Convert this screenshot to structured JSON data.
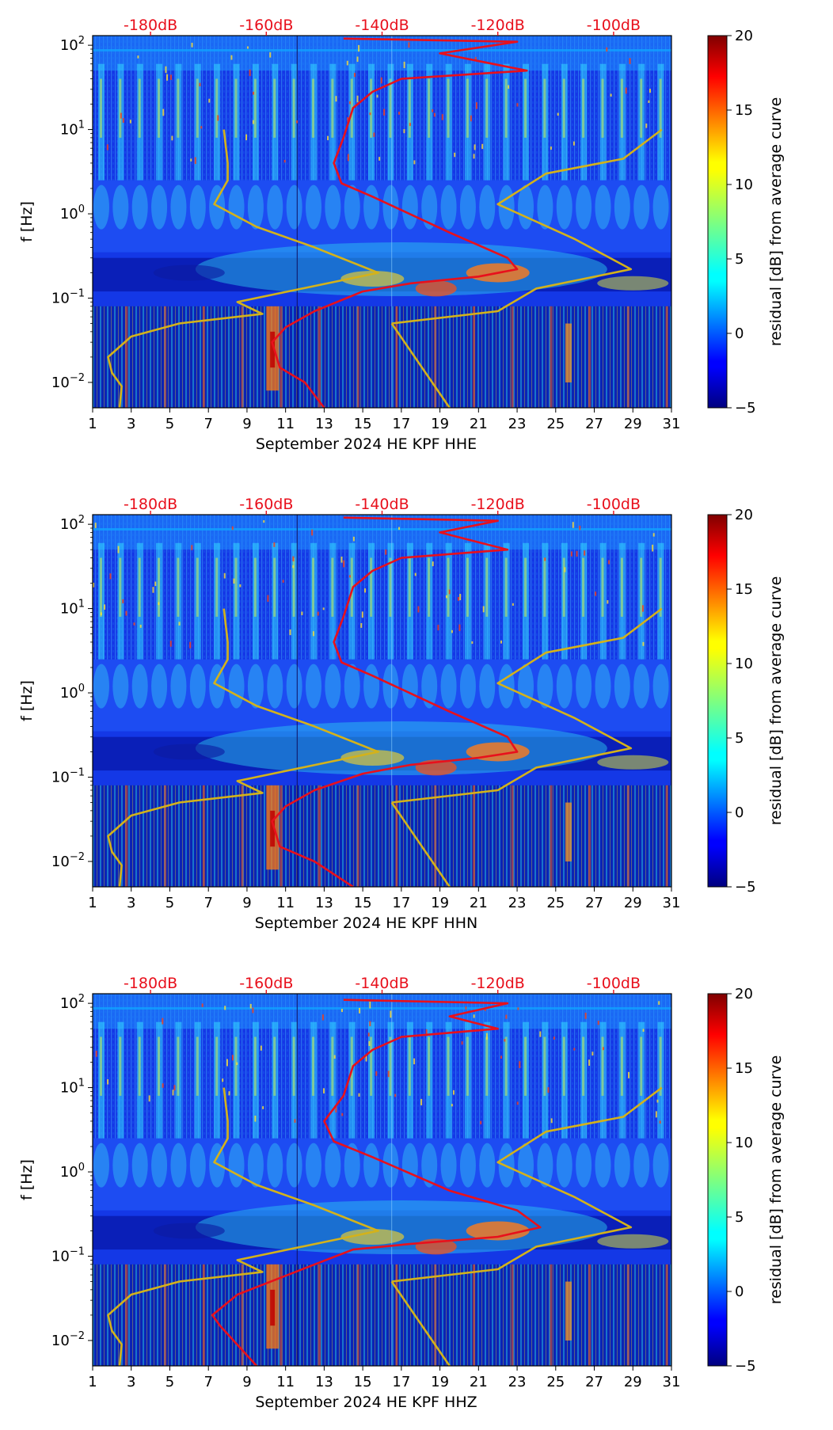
{
  "chart_data": [
    {
      "type": "heatmap",
      "xlabel": "September 2024 HE KPF  HHE",
      "ylabel": "f [Hz]",
      "colorbar_label": "residual [dB] from average curve",
      "colorbar_ticks": [
        "20",
        "15",
        "10",
        "5",
        "0",
        "−5"
      ],
      "clim": [
        -5,
        20
      ],
      "x_ticks": [
        "1",
        "3",
        "5",
        "7",
        "9",
        "11",
        "13",
        "15",
        "17",
        "19",
        "21",
        "23",
        "25",
        "27",
        "29",
        "31"
      ],
      "xlim": [
        1,
        31
      ],
      "y_scale": "log",
      "ylim": [
        0.005,
        130
      ],
      "y_ticks": [
        {
          "v": 100,
          "base": "10",
          "exp": "2"
        },
        {
          "v": 10,
          "base": "10",
          "exp": "1"
        },
        {
          "v": 1,
          "base": "10",
          "exp": "0"
        },
        {
          "v": 0.1,
          "base": "10",
          "exp": "−1"
        },
        {
          "v": 0.01,
          "base": "10",
          "exp": "−2"
        }
      ],
      "db_ticks": [
        {
          "label": "-180dB",
          "x": 4
        },
        {
          "label": "-160dB",
          "x": 10
        },
        {
          "label": "-140dB",
          "x": 16
        },
        {
          "label": "-120dB",
          "x": 22
        },
        {
          "label": "-100dB",
          "x": 28
        }
      ],
      "series": [
        {
          "color": "#d4b21a",
          "points": [
            [
              7.8,
              10
            ],
            [
              8.0,
              4
            ],
            [
              8.0,
              2.5
            ],
            [
              7.3,
              1.3
            ],
            [
              9.5,
              0.7
            ],
            [
              12.5,
              0.4
            ],
            [
              15.8,
              0.2
            ],
            [
              8.5,
              0.09
            ],
            [
              9.8,
              0.065
            ],
            [
              5.5,
              0.05
            ],
            [
              3.0,
              0.035
            ],
            [
              1.8,
              0.02
            ],
            [
              2.0,
              0.013
            ],
            [
              2.5,
              0.009
            ],
            [
              2.4,
              0.005
            ]
          ]
        },
        {
          "color": "#d4b21a",
          "points": [
            [
              16.5,
              0.05
            ],
            [
              19.5,
              0.005
            ]
          ]
        },
        {
          "color": "#d4b21a",
          "points": [
            [
              30.5,
              10
            ],
            [
              28.5,
              4.5
            ],
            [
              24.5,
              3
            ],
            [
              22.0,
              1.3
            ],
            [
              26.0,
              0.5
            ],
            [
              28.9,
              0.22
            ],
            [
              24.0,
              0.13
            ],
            [
              22.0,
              0.07
            ],
            [
              16.5,
              0.05
            ]
          ]
        },
        {
          "color": "#e8101c",
          "points": [
            [
              14.0,
              120
            ],
            [
              23.0,
              110
            ],
            [
              19.0,
              80
            ],
            [
              23.5,
              50
            ],
            [
              17.0,
              40
            ],
            [
              15.5,
              28
            ],
            [
              14.5,
              18
            ],
            [
              14.0,
              8
            ],
            [
              13.5,
              4
            ],
            [
              13.9,
              2.3
            ],
            [
              15.5,
              1.6
            ],
            [
              19.5,
              0.6
            ],
            [
              22.5,
              0.3
            ],
            [
              23.0,
              0.22
            ],
            [
              21.0,
              0.18
            ],
            [
              17.5,
              0.15
            ],
            [
              15.0,
              0.12
            ],
            [
              12.5,
              0.07
            ],
            [
              11.0,
              0.045
            ],
            [
              10.3,
              0.03
            ],
            [
              10.7,
              0.015
            ],
            [
              12.0,
              0.01
            ],
            [
              13.0,
              0.005
            ]
          ]
        }
      ]
    },
    {
      "type": "heatmap",
      "xlabel": "September 2024 HE KPF  HHN",
      "ylabel": "f [Hz]",
      "colorbar_label": "residual [dB] from average curve",
      "colorbar_ticks": [
        "20",
        "15",
        "10",
        "5",
        "0",
        "−5"
      ],
      "clim": [
        -5,
        20
      ],
      "x_ticks": [
        "1",
        "3",
        "5",
        "7",
        "9",
        "11",
        "13",
        "15",
        "17",
        "19",
        "21",
        "23",
        "25",
        "27",
        "29",
        "31"
      ],
      "xlim": [
        1,
        31
      ],
      "y_scale": "log",
      "ylim": [
        0.005,
        130
      ],
      "y_ticks": [
        {
          "v": 100,
          "base": "10",
          "exp": "2"
        },
        {
          "v": 10,
          "base": "10",
          "exp": "1"
        },
        {
          "v": 1,
          "base": "10",
          "exp": "0"
        },
        {
          "v": 0.1,
          "base": "10",
          "exp": "−1"
        },
        {
          "v": 0.01,
          "base": "10",
          "exp": "−2"
        }
      ],
      "db_ticks": [
        {
          "label": "-180dB",
          "x": 4
        },
        {
          "label": "-160dB",
          "x": 10
        },
        {
          "label": "-140dB",
          "x": 16
        },
        {
          "label": "-120dB",
          "x": 22
        },
        {
          "label": "-100dB",
          "x": 28
        }
      ],
      "series": [
        {
          "color": "#d4b21a",
          "points": [
            [
              7.8,
              10
            ],
            [
              8.0,
              4
            ],
            [
              8.0,
              2.5
            ],
            [
              7.3,
              1.3
            ],
            [
              9.5,
              0.7
            ],
            [
              12.5,
              0.4
            ],
            [
              15.8,
              0.2
            ],
            [
              8.5,
              0.09
            ],
            [
              9.8,
              0.065
            ],
            [
              5.5,
              0.05
            ],
            [
              3.0,
              0.035
            ],
            [
              1.8,
              0.02
            ],
            [
              2.0,
              0.013
            ],
            [
              2.5,
              0.009
            ],
            [
              2.4,
              0.005
            ]
          ]
        },
        {
          "color": "#d4b21a",
          "points": [
            [
              16.5,
              0.05
            ],
            [
              19.5,
              0.005
            ]
          ]
        },
        {
          "color": "#d4b21a",
          "points": [
            [
              30.5,
              10
            ],
            [
              28.5,
              4.5
            ],
            [
              24.5,
              3
            ],
            [
              22.0,
              1.3
            ],
            [
              26.0,
              0.5
            ],
            [
              28.9,
              0.22
            ],
            [
              24.0,
              0.13
            ],
            [
              22.0,
              0.07
            ],
            [
              16.5,
              0.05
            ]
          ]
        },
        {
          "color": "#e8101c",
          "points": [
            [
              14.0,
              120
            ],
            [
              22.0,
              110
            ],
            [
              19.0,
              80
            ],
            [
              22.5,
              50
            ],
            [
              17.0,
              40
            ],
            [
              15.5,
              28
            ],
            [
              14.5,
              18
            ],
            [
              14.0,
              8
            ],
            [
              13.5,
              4
            ],
            [
              13.9,
              2.3
            ],
            [
              15.5,
              1.6
            ],
            [
              19.5,
              0.6
            ],
            [
              22.5,
              0.3
            ],
            [
              23.0,
              0.2
            ],
            [
              21.0,
              0.17
            ],
            [
              17.5,
              0.14
            ],
            [
              15.0,
              0.11
            ],
            [
              12.5,
              0.07
            ],
            [
              11.0,
              0.045
            ],
            [
              10.3,
              0.03
            ],
            [
              10.7,
              0.015
            ],
            [
              12.5,
              0.01
            ],
            [
              14.5,
              0.005
            ]
          ]
        }
      ]
    },
    {
      "type": "heatmap",
      "xlabel": "September 2024 HE KPF  HHZ",
      "ylabel": "f [Hz]",
      "colorbar_label": "residual [dB] from average curve",
      "colorbar_ticks": [
        "20",
        "15",
        "10",
        "5",
        "0",
        "−5"
      ],
      "clim": [
        -5,
        20
      ],
      "x_ticks": [
        "1",
        "3",
        "5",
        "7",
        "9",
        "11",
        "13",
        "15",
        "17",
        "19",
        "21",
        "23",
        "25",
        "27",
        "29",
        "31"
      ],
      "xlim": [
        1,
        31
      ],
      "y_scale": "log",
      "ylim": [
        0.005,
        130
      ],
      "y_ticks": [
        {
          "v": 100,
          "base": "10",
          "exp": "2"
        },
        {
          "v": 10,
          "base": "10",
          "exp": "1"
        },
        {
          "v": 1,
          "base": "10",
          "exp": "0"
        },
        {
          "v": 0.1,
          "base": "10",
          "exp": "−1"
        },
        {
          "v": 0.01,
          "base": "10",
          "exp": "−2"
        }
      ],
      "db_ticks": [
        {
          "label": "-180dB",
          "x": 4
        },
        {
          "label": "-160dB",
          "x": 10
        },
        {
          "label": "-140dB",
          "x": 16
        },
        {
          "label": "-120dB",
          "x": 22
        },
        {
          "label": "-100dB",
          "x": 28
        }
      ],
      "series": [
        {
          "color": "#d4b21a",
          "points": [
            [
              7.8,
              10
            ],
            [
              8.0,
              4
            ],
            [
              8.0,
              2.5
            ],
            [
              7.3,
              1.3
            ],
            [
              9.5,
              0.7
            ],
            [
              12.5,
              0.4
            ],
            [
              15.8,
              0.2
            ],
            [
              8.5,
              0.09
            ],
            [
              9.8,
              0.065
            ],
            [
              5.5,
              0.05
            ],
            [
              3.0,
              0.035
            ],
            [
              1.8,
              0.02
            ],
            [
              2.0,
              0.013
            ],
            [
              2.5,
              0.009
            ],
            [
              2.4,
              0.005
            ]
          ]
        },
        {
          "color": "#d4b21a",
          "points": [
            [
              16.5,
              0.05
            ],
            [
              19.5,
              0.005
            ]
          ]
        },
        {
          "color": "#d4b21a",
          "points": [
            [
              30.5,
              10
            ],
            [
              28.5,
              4.5
            ],
            [
              24.5,
              3
            ],
            [
              22.0,
              1.3
            ],
            [
              26.0,
              0.5
            ],
            [
              28.9,
              0.22
            ],
            [
              24.0,
              0.13
            ],
            [
              22.0,
              0.07
            ],
            [
              16.5,
              0.05
            ]
          ]
        },
        {
          "color": "#e8101c",
          "points": [
            [
              14.0,
              110
            ],
            [
              22.5,
              100
            ],
            [
              19.5,
              70
            ],
            [
              22.0,
              50
            ],
            [
              17.0,
              40
            ],
            [
              15.5,
              28
            ],
            [
              14.5,
              18
            ],
            [
              14.0,
              8
            ],
            [
              13.0,
              4
            ],
            [
              13.5,
              2.3
            ],
            [
              15.5,
              1.5
            ],
            [
              19.5,
              0.6
            ],
            [
              23.0,
              0.35
            ],
            [
              24.2,
              0.22
            ],
            [
              22.0,
              0.17
            ],
            [
              17.5,
              0.14
            ],
            [
              14.5,
              0.12
            ],
            [
              11.5,
              0.065
            ],
            [
              8.5,
              0.035
            ],
            [
              7.2,
              0.02
            ],
            [
              7.6,
              0.015
            ],
            [
              9.5,
              0.005
            ]
          ]
        }
      ]
    }
  ]
}
